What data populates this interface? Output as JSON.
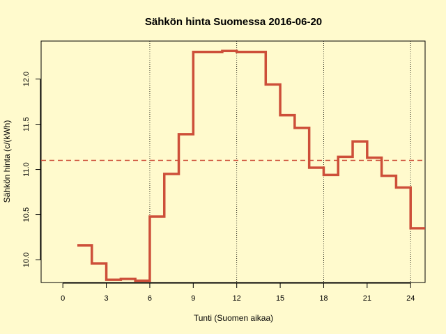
{
  "chart_data": {
    "type": "line",
    "step": true,
    "title": "Sähkön hinta Suomessa 2016-06-20",
    "xlabel": "Tunti (Suomen aikaa)",
    "ylabel": "Sähkön hinta (c/(kWh)",
    "xlim": [
      -1.5,
      25
    ],
    "ylim": [
      9.75,
      12.42
    ],
    "xticks": [
      0,
      3,
      6,
      9,
      12,
      15,
      18,
      21,
      24
    ],
    "xtick_labels": [
      "0",
      "3",
      "6",
      "9",
      "12",
      "15",
      "18",
      "21",
      "24"
    ],
    "yticks": [
      10.0,
      10.5,
      11.0,
      11.5,
      12.0
    ],
    "ytick_labels": [
      "10.0",
      "10.5",
      "11.0",
      "11.5",
      "12.0"
    ],
    "vlines": [
      6,
      12,
      18,
      24
    ],
    "mean_line": 11.1,
    "grid": false,
    "colors": {
      "series": "#cd4f39",
      "mean": "#cd4f39",
      "background": "#fffacd"
    },
    "series": [
      {
        "x": [
          1,
          2,
          3,
          4,
          5,
          6,
          7,
          8,
          9,
          10,
          11,
          12,
          13,
          14,
          15,
          16,
          17,
          18,
          19,
          20,
          21,
          22,
          23,
          24,
          25
        ],
        "values": [
          10.16,
          9.96,
          9.78,
          9.79,
          9.77,
          10.48,
          10.95,
          11.39,
          12.3,
          12.3,
          12.31,
          12.3,
          12.3,
          11.94,
          11.6,
          11.46,
          11.02,
          10.94,
          11.14,
          11.31,
          11.13,
          10.93,
          10.8,
          10.35,
          10.35
        ]
      }
    ]
  }
}
